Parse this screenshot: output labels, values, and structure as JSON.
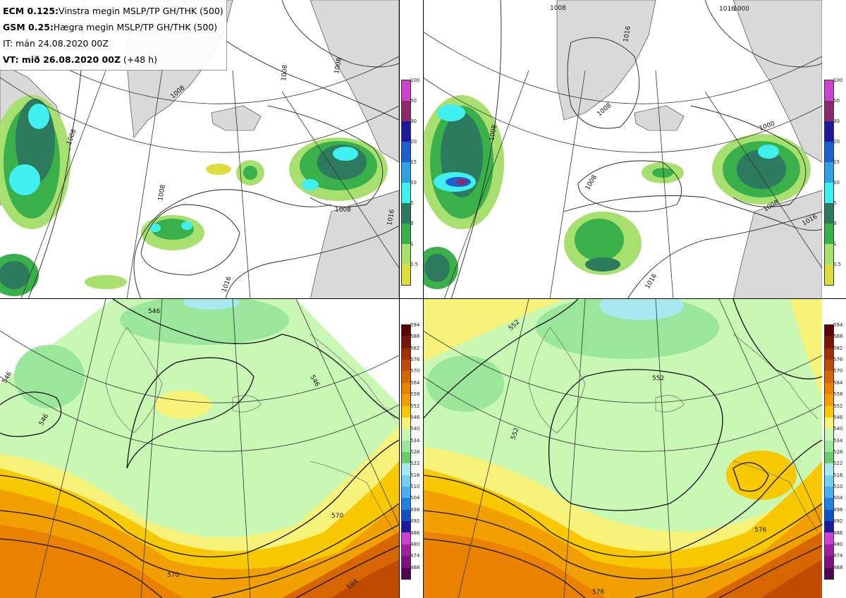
{
  "header": {
    "line1_bold": "ECM 0.125:",
    "line1_text": "Vinstra megin MSLP/TP GH/THK (500)",
    "line2_bold": "GSM 0.25:",
    "line2_text": "Hægra megin MSLP/TP GH/THK (500)",
    "line3_text": "IT: mán 24.08.2020 00Z",
    "line4_bold": "VT: mið 26.08.2020 00Z",
    "line4_text": " (+48 h)"
  },
  "precip_colorbar": {
    "labels": [
      "100",
      "50",
      "30",
      "20",
      "15",
      "10",
      "5",
      "3",
      "1",
      "0.5"
    ],
    "colors": [
      "#cc44cc",
      "#8b2a6a",
      "#1a1a9a",
      "#1e5fd0",
      "#2fa0e0",
      "#40f0f0",
      "#2e7a5e",
      "#3ab04a",
      "#a8e070",
      "#dddd40"
    ]
  },
  "thk_colorbar": {
    "labels": [
      "594",
      "588",
      "582",
      "576",
      "570",
      "564",
      "558",
      "552",
      "546",
      "540",
      "534",
      "528",
      "522",
      "516",
      "510",
      "504",
      "498",
      "492",
      "486",
      "480",
      "474",
      "468"
    ],
    "colors": [
      "#5a0000",
      "#7a1500",
      "#a03000",
      "#c04a00",
      "#d86600",
      "#ea8200",
      "#f2a000",
      "#f8c800",
      "#f6f27a",
      "#c8f8b4",
      "#9ae69a",
      "#6acc6a",
      "#a8e8f0",
      "#78d0f0",
      "#48b0f0",
      "#2080e0",
      "#1050c0",
      "#1a1a9a",
      "#d040d0",
      "#a020a0",
      "#801080",
      "#500050"
    ]
  },
  "contour_labels": {
    "tl": [
      "1008",
      "1008",
      "1008",
      "1008",
      "1008",
      "1016",
      "1016",
      "1008"
    ],
    "tr": [
      "1016",
      "1008",
      "1016",
      "1000",
      "1008",
      "1008",
      "1008",
      "1000",
      "1008",
      "1016",
      "1016"
    ],
    "bl": [
      "546",
      "546",
      "546",
      "546",
      "570",
      "570",
      "594"
    ],
    "br": [
      "552",
      "552",
      "552",
      "576",
      "576"
    ]
  }
}
